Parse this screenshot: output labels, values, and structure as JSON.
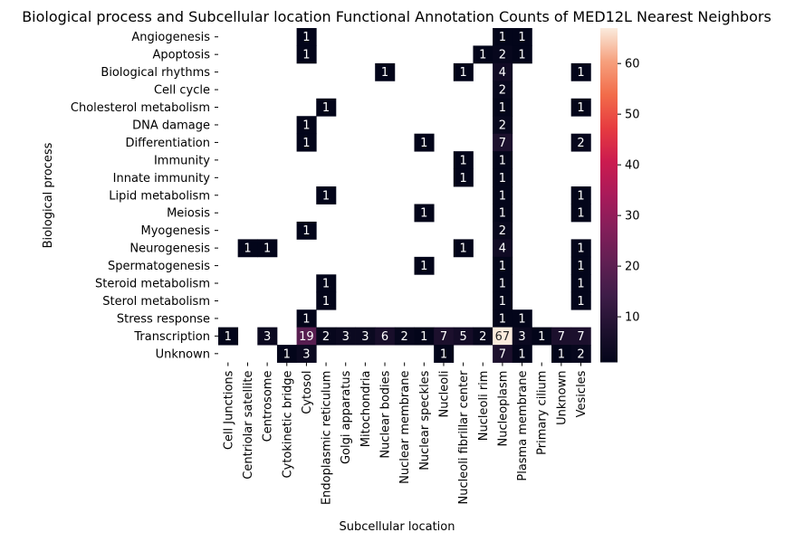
{
  "chart_data": {
    "type": "heatmap",
    "title": "Biological process and Subcellular location Functional Annotation Counts of MED12L Nearest Neighbors",
    "xlabel": "Subcellular location",
    "ylabel": "Biological process",
    "x_categories": [
      "Cell Junctions",
      "Centriolar satellite",
      "Centrosome",
      "Cytokinetic bridge",
      "Cytosol",
      "Endoplasmic reticulum",
      "Golgi apparatus",
      "Mitochondria",
      "Nuclear bodies",
      "Nuclear membrane",
      "Nuclear speckles",
      "Nucleoli",
      "Nucleoli fibrillar center",
      "Nucleoli rim",
      "Nucleoplasm",
      "Plasma membrane",
      "Primary cilium",
      "Unknown",
      "Vesicles"
    ],
    "y_categories": [
      "Angiogenesis",
      "Apoptosis",
      "Biological rhythms",
      "Cell cycle",
      "Cholesterol metabolism",
      "DNA damage",
      "Differentiation",
      "Immunity",
      "Innate immunity",
      "Lipid metabolism",
      "Meiosis",
      "Myogenesis",
      "Neurogenesis",
      "Spermatogenesis",
      "Steroid metabolism",
      "Sterol metabolism",
      "Stress response",
      "Transcription",
      "Unknown"
    ],
    "values": [
      [
        null,
        null,
        null,
        null,
        1,
        null,
        null,
        null,
        null,
        null,
        null,
        null,
        null,
        null,
        1,
        1,
        null,
        null,
        null
      ],
      [
        null,
        null,
        null,
        null,
        1,
        null,
        null,
        null,
        null,
        null,
        null,
        null,
        null,
        1,
        2,
        1,
        null,
        null,
        null
      ],
      [
        null,
        null,
        null,
        null,
        null,
        null,
        null,
        null,
        1,
        null,
        null,
        null,
        1,
        null,
        4,
        null,
        null,
        null,
        1
      ],
      [
        null,
        null,
        null,
        null,
        null,
        null,
        null,
        null,
        null,
        null,
        null,
        null,
        null,
        null,
        2,
        null,
        null,
        null,
        null
      ],
      [
        null,
        null,
        null,
        null,
        null,
        1,
        null,
        null,
        null,
        null,
        null,
        null,
        null,
        null,
        1,
        null,
        null,
        null,
        1
      ],
      [
        null,
        null,
        null,
        null,
        1,
        null,
        null,
        null,
        null,
        null,
        null,
        null,
        null,
        null,
        2,
        null,
        null,
        null,
        null
      ],
      [
        null,
        null,
        null,
        null,
        1,
        null,
        null,
        null,
        null,
        null,
        1,
        null,
        null,
        null,
        7,
        null,
        null,
        null,
        2
      ],
      [
        null,
        null,
        null,
        null,
        null,
        null,
        null,
        null,
        null,
        null,
        null,
        null,
        1,
        null,
        1,
        null,
        null,
        null,
        null
      ],
      [
        null,
        null,
        null,
        null,
        null,
        null,
        null,
        null,
        null,
        null,
        null,
        null,
        1,
        null,
        1,
        null,
        null,
        null,
        null
      ],
      [
        null,
        null,
        null,
        null,
        null,
        1,
        null,
        null,
        null,
        null,
        null,
        null,
        null,
        null,
        1,
        null,
        null,
        null,
        1
      ],
      [
        null,
        null,
        null,
        null,
        null,
        null,
        null,
        null,
        null,
        null,
        1,
        null,
        null,
        null,
        1,
        null,
        null,
        null,
        1
      ],
      [
        null,
        null,
        null,
        null,
        1,
        null,
        null,
        null,
        null,
        null,
        null,
        null,
        null,
        null,
        2,
        null,
        null,
        null,
        null
      ],
      [
        null,
        1,
        1,
        null,
        null,
        null,
        null,
        null,
        null,
        null,
        null,
        null,
        1,
        null,
        4,
        null,
        null,
        null,
        1
      ],
      [
        null,
        null,
        null,
        null,
        null,
        null,
        null,
        null,
        null,
        null,
        1,
        null,
        null,
        null,
        1,
        null,
        null,
        null,
        1
      ],
      [
        null,
        null,
        null,
        null,
        null,
        1,
        null,
        null,
        null,
        null,
        null,
        null,
        null,
        null,
        1,
        null,
        null,
        null,
        1
      ],
      [
        null,
        null,
        null,
        null,
        null,
        1,
        null,
        null,
        null,
        null,
        null,
        null,
        null,
        null,
        1,
        null,
        null,
        null,
        1
      ],
      [
        null,
        null,
        null,
        null,
        1,
        null,
        null,
        null,
        null,
        null,
        null,
        null,
        null,
        null,
        1,
        1,
        null,
        null,
        null
      ],
      [
        1,
        null,
        3,
        null,
        19,
        2,
        3,
        3,
        6,
        2,
        1,
        7,
        5,
        2,
        67,
        3,
        1,
        7,
        7
      ],
      [
        null,
        null,
        null,
        1,
        3,
        null,
        null,
        null,
        null,
        null,
        null,
        1,
        null,
        null,
        7,
        1,
        null,
        1,
        2
      ]
    ],
    "colorbar": {
      "min": 1,
      "max": 67,
      "ticks": [
        10,
        20,
        30,
        40,
        50,
        60
      ],
      "colormap": "rocket"
    },
    "annotations": true,
    "grid": false
  }
}
